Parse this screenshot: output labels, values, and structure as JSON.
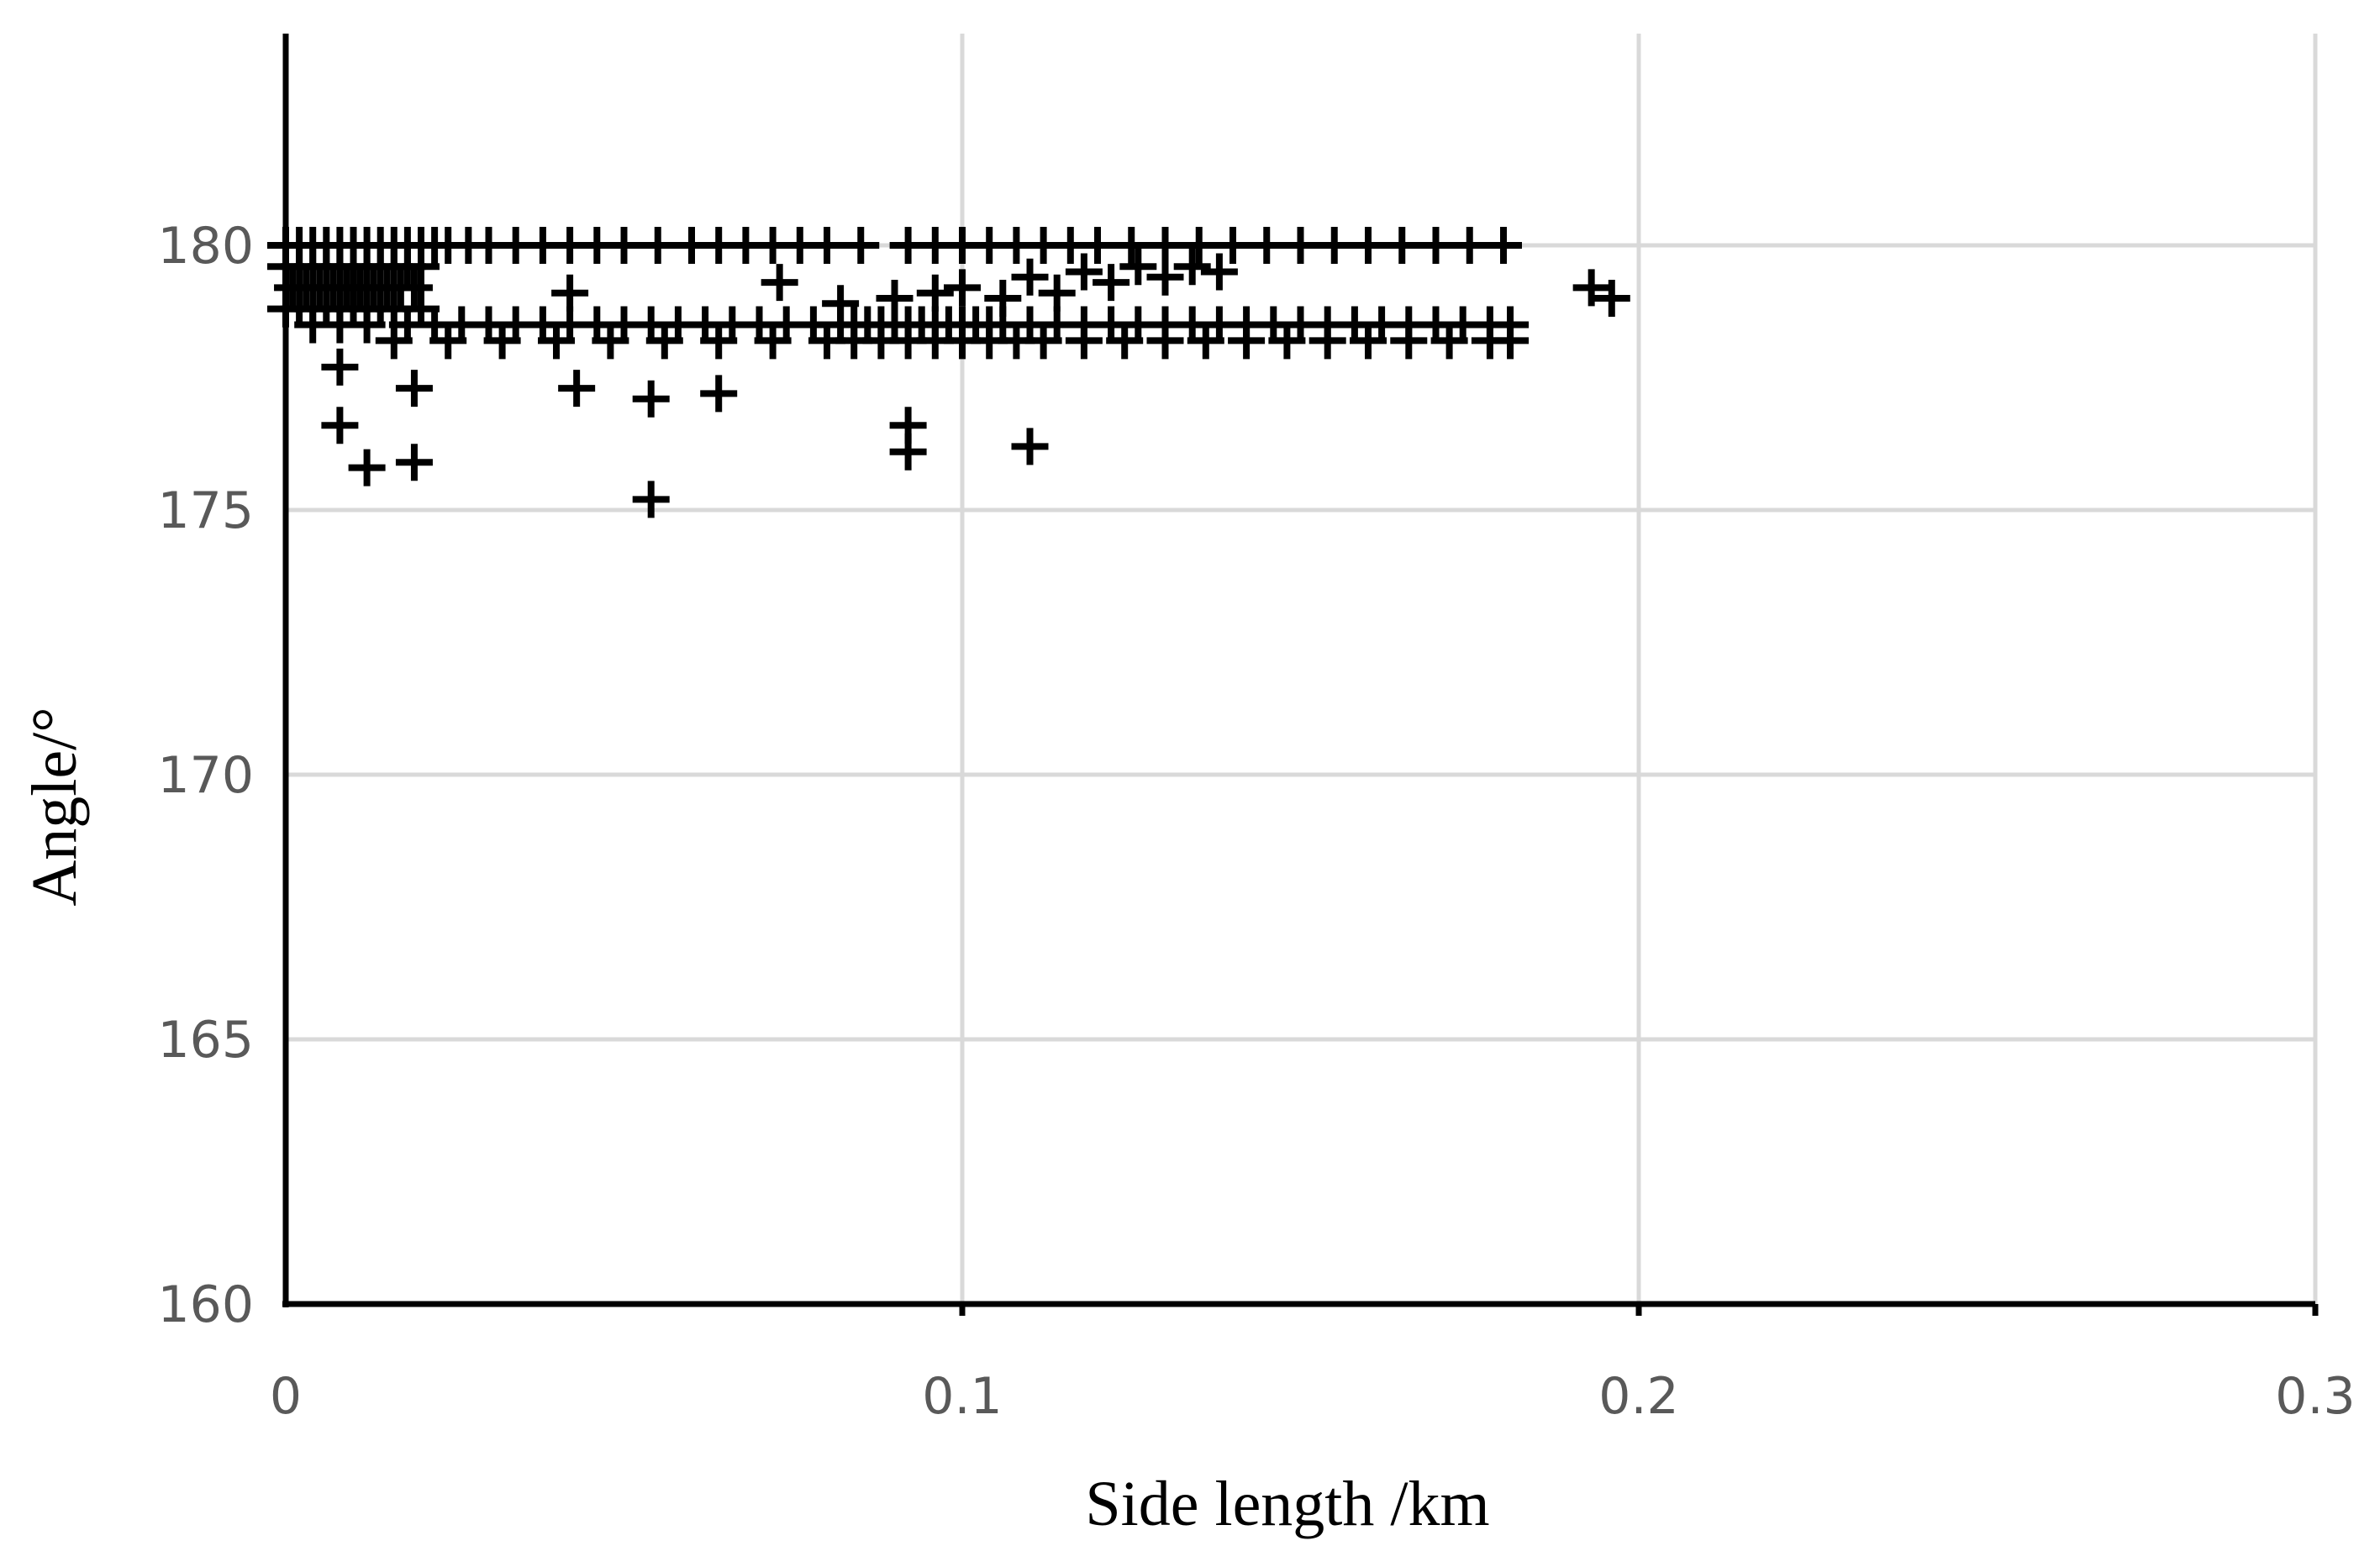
{
  "chart_data": {
    "type": "scatter",
    "title": "",
    "xlabel": "Side length /km",
    "ylabel": "Angle/°",
    "xlim": [
      0,
      0.3
    ],
    "ylim": [
      160,
      184
    ],
    "x_ticks": [
      "0",
      "0.1",
      "0.2",
      "0.3"
    ],
    "x_tick_values": [
      0,
      0.1,
      0.2,
      0.3
    ],
    "y_ticks": [
      "160",
      "165",
      "170",
      "175",
      "180"
    ],
    "y_tick_values": [
      160,
      165,
      170,
      175,
      180
    ],
    "grid": true,
    "marker": "plus",
    "colors": {
      "marker": "#000000",
      "grid": "#d9d9d9",
      "axis": "#000000",
      "tick_label": "#595959"
    },
    "series": [
      {
        "x": [
          0.0,
          0.002,
          0.004,
          0.006,
          0.008,
          0.01,
          0.012,
          0.014,
          0.016,
          0.018,
          0.02,
          0.022,
          0.024,
          0.027,
          0.03,
          0.034,
          0.038,
          0.042,
          0.046,
          0.05,
          0.055,
          0.06,
          0.064,
          0.068,
          0.072,
          0.076,
          0.08,
          0.085,
          0.092,
          0.096,
          0.1,
          0.104,
          0.108,
          0.112,
          0.116,
          0.12,
          0.125,
          0.13,
          0.135,
          0.14,
          0.145,
          0.15,
          0.155,
          0.16,
          0.165,
          0.17,
          0.175,
          0.18,
          0.0,
          0.002,
          0.004,
          0.006,
          0.008,
          0.01,
          0.012,
          0.014,
          0.016,
          0.018,
          0.02,
          0.001,
          0.003,
          0.005,
          0.007,
          0.009,
          0.011,
          0.013,
          0.015,
          0.017,
          0.019,
          0.0,
          0.002,
          0.004,
          0.006,
          0.008,
          0.01,
          0.012,
          0.014,
          0.016,
          0.02,
          0.004,
          0.008,
          0.012,
          0.018,
          0.022,
          0.026,
          0.03,
          0.034,
          0.038,
          0.042,
          0.046,
          0.05,
          0.054,
          0.058,
          0.062,
          0.066,
          0.07,
          0.074,
          0.078,
          0.082,
          0.084,
          0.086,
          0.088,
          0.09,
          0.092,
          0.094,
          0.096,
          0.098,
          0.1,
          0.102,
          0.104,
          0.106,
          0.11,
          0.114,
          0.118,
          0.122,
          0.126,
          0.13,
          0.134,
          0.138,
          0.142,
          0.146,
          0.15,
          0.154,
          0.158,
          0.162,
          0.166,
          0.17,
          0.174,
          0.178,
          0.181,
          0.016,
          0.024,
          0.032,
          0.04,
          0.048,
          0.056,
          0.064,
          0.072,
          0.08,
          0.084,
          0.088,
          0.092,
          0.096,
          0.1,
          0.104,
          0.108,
          0.112,
          0.118,
          0.124,
          0.13,
          0.136,
          0.142,
          0.148,
          0.154,
          0.16,
          0.166,
          0.172,
          0.178,
          0.181,
          0.042,
          0.073,
          0.082,
          0.09,
          0.096,
          0.1,
          0.106,
          0.11,
          0.114,
          0.118,
          0.122,
          0.126,
          0.13,
          0.134,
          0.138,
          0.008,
          0.008,
          0.012,
          0.019,
          0.019,
          0.043,
          0.054,
          0.054,
          0.064,
          0.092,
          0.092,
          0.11,
          0.193,
          0.196
        ],
        "y": [
          180.0,
          180.0,
          180.0,
          180.0,
          180.0,
          180.0,
          180.0,
          180.0,
          180.0,
          180.0,
          180.0,
          180.0,
          180.0,
          180.0,
          180.0,
          180.0,
          180.0,
          180.0,
          180.0,
          180.0,
          180.0,
          180.0,
          180.0,
          180.0,
          180.0,
          180.0,
          180.0,
          180.0,
          180.0,
          180.0,
          180.0,
          180.0,
          180.0,
          180.0,
          180.0,
          180.0,
          180.0,
          180.0,
          180.0,
          180.0,
          180.0,
          180.0,
          180.0,
          180.0,
          180.0,
          180.0,
          180.0,
          180.0,
          179.6,
          179.6,
          179.6,
          179.6,
          179.6,
          179.6,
          179.6,
          179.6,
          179.6,
          179.6,
          179.6,
          179.2,
          179.2,
          179.2,
          179.2,
          179.2,
          179.2,
          179.2,
          179.2,
          179.2,
          179.2,
          178.8,
          178.8,
          178.8,
          178.8,
          178.8,
          178.8,
          178.8,
          178.8,
          178.8,
          178.8,
          178.5,
          178.5,
          178.5,
          178.5,
          178.5,
          178.5,
          178.5,
          178.5,
          178.5,
          178.5,
          178.5,
          178.5,
          178.5,
          178.5,
          178.5,
          178.5,
          178.5,
          178.5,
          178.5,
          178.5,
          178.5,
          178.5,
          178.5,
          178.5,
          178.5,
          178.5,
          178.5,
          178.5,
          178.5,
          178.5,
          178.5,
          178.5,
          178.5,
          178.5,
          178.5,
          178.5,
          178.5,
          178.5,
          178.5,
          178.5,
          178.5,
          178.5,
          178.5,
          178.5,
          178.5,
          178.5,
          178.5,
          178.5,
          178.5,
          178.5,
          178.5,
          178.2,
          178.2,
          178.2,
          178.2,
          178.2,
          178.2,
          178.2,
          178.2,
          178.2,
          178.2,
          178.2,
          178.2,
          178.2,
          178.2,
          178.2,
          178.2,
          178.2,
          178.2,
          178.2,
          178.2,
          178.2,
          178.2,
          178.2,
          178.2,
          178.2,
          178.2,
          178.2,
          178.2,
          178.2,
          179.1,
          179.3,
          178.9,
          179.0,
          179.1,
          179.2,
          179.0,
          179.4,
          179.1,
          179.5,
          179.3,
          179.6,
          179.4,
          179.6,
          179.5,
          177.7,
          176.6,
          175.8,
          177.3,
          175.9,
          177.3,
          177.1,
          175.2,
          177.2,
          176.6,
          176.1,
          176.2,
          179.2,
          179.0
        ]
      }
    ]
  }
}
